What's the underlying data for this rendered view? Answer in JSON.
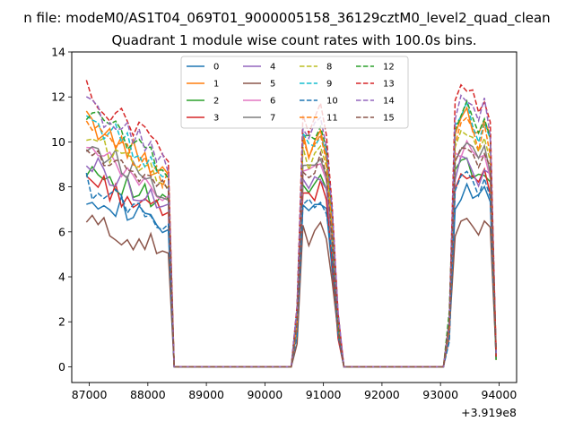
{
  "figure": {
    "suptitle": "n file: modeM0/AS1T04_069T01_9000005158_36129cztM0_level2_quad_clean"
  },
  "chart_data": {
    "type": "line",
    "title": "Quadrant 1 module wise count rates with 100.0s bins.",
    "xlabel": "",
    "ylabel": "",
    "x_offset_label": "+3.919e8",
    "xlim": [
      86700,
      94300
    ],
    "ylim": [
      -0.7,
      14.0
    ],
    "x_ticks": [
      87000,
      88000,
      89000,
      90000,
      91000,
      92000,
      93000,
      94000
    ],
    "x_tick_labels": [
      "87000",
      "88000",
      "89000",
      "90000",
      "91000",
      "92000",
      "93000",
      "94000"
    ],
    "y_ticks": [
      0,
      2,
      4,
      6,
      8,
      10,
      12,
      14
    ],
    "y_tick_labels": [
      "0",
      "2",
      "4",
      "6",
      "8",
      "10",
      "12",
      "14"
    ],
    "legend_position": "upper-center",
    "segments": [
      {
        "start": 86950,
        "n": 16
      },
      {
        "start": 88450,
        "n": 1
      },
      {
        "start": 88550,
        "n": 19
      },
      {
        "start": 90450,
        "n": 1
      },
      {
        "start": 90550,
        "n": 8
      },
      {
        "start": 91350,
        "n": 1
      },
      {
        "start": 91450,
        "n": 16
      },
      {
        "start": 93050,
        "n": 1
      },
      {
        "start": 93150,
        "n": 8
      },
      {
        "start": 93950,
        "n": 1
      }
    ],
    "series": [
      {
        "name": "0",
        "color": "#1f77b4",
        "dash": "solid",
        "base": 7.2
      },
      {
        "name": "1",
        "color": "#ff7f0e",
        "dash": "solid",
        "base": 10.1
      },
      {
        "name": "2",
        "color": "#2ca02c",
        "dash": "solid",
        "base": 8.3
      },
      {
        "name": "3",
        "color": "#d62728",
        "dash": "solid",
        "base": 7.8
      },
      {
        "name": "4",
        "color": "#9467bd",
        "dash": "solid",
        "base": 8.4
      },
      {
        "name": "5",
        "color": "#8c564b",
        "dash": "solid",
        "base": 6.0
      },
      {
        "name": "6",
        "color": "#e377c2",
        "dash": "solid",
        "base": 8.9
      },
      {
        "name": "7",
        "color": "#7f7f7f",
        "dash": "solid",
        "base": 9.2
      },
      {
        "name": "8",
        "color": "#bcbd22",
        "dash": "dashed",
        "base": 9.5
      },
      {
        "name": "9",
        "color": "#17becf",
        "dash": "dashed",
        "base": 10.3
      },
      {
        "name": "10",
        "color": "#1f77b4",
        "dash": "dashed",
        "base": 7.5
      },
      {
        "name": "11",
        "color": "#ff7f0e",
        "dash": "dashed",
        "base": 9.8
      },
      {
        "name": "12",
        "color": "#2ca02c",
        "dash": "dashed",
        "base": 10.5
      },
      {
        "name": "13",
        "color": "#d62728",
        "dash": "dashed",
        "base": 11.3
      },
      {
        "name": "14",
        "color": "#9467bd",
        "dash": "dashed",
        "base": 10.8
      },
      {
        "name": "15",
        "color": "#8c564b",
        "dash": "dashed",
        "base": 9.0
      }
    ]
  }
}
